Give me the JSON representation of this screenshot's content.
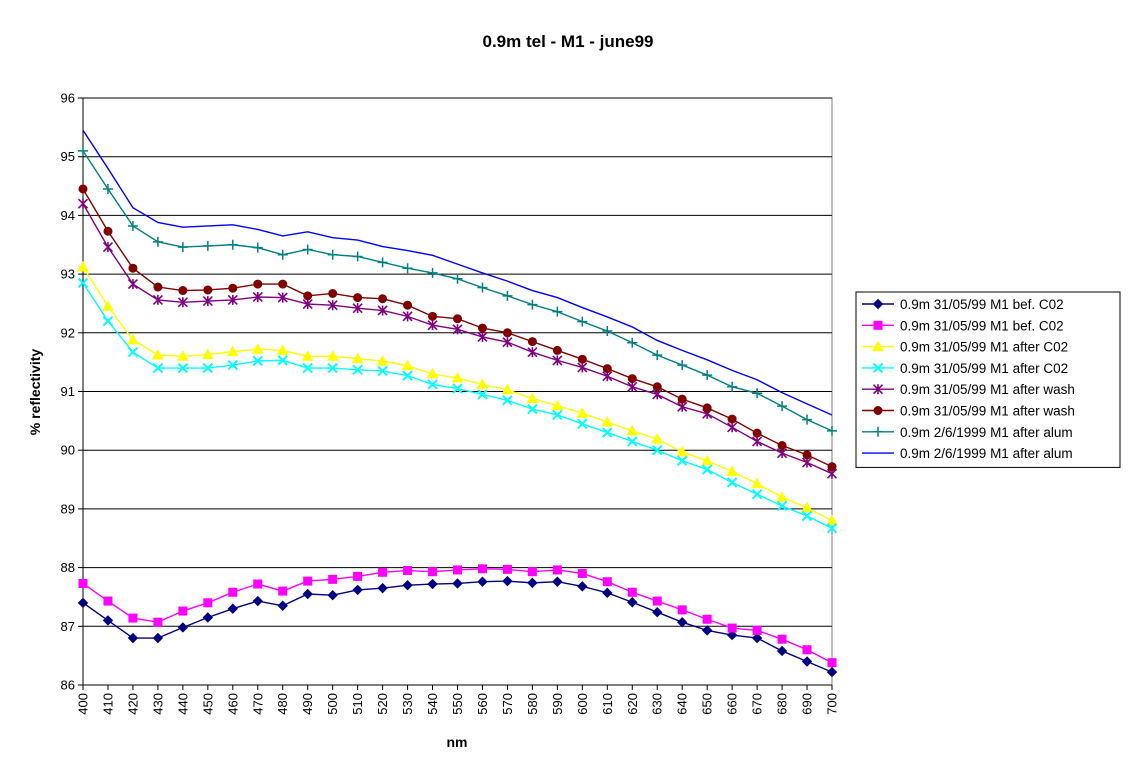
{
  "chart_data": {
    "type": "line",
    "title": "0.9m tel - M1 - june99",
    "xlabel": "nm",
    "ylabel": "% reflectivity",
    "ylim": [
      86,
      96
    ],
    "yticks": [
      "86",
      "87",
      "88",
      "89",
      "90",
      "91",
      "92",
      "93",
      "94",
      "95",
      "96"
    ],
    "x": [
      400,
      410,
      420,
      430,
      440,
      450,
      460,
      470,
      480,
      490,
      500,
      510,
      520,
      530,
      540,
      550,
      560,
      570,
      580,
      590,
      600,
      610,
      620,
      630,
      640,
      650,
      660,
      670,
      680,
      690,
      700
    ],
    "grid": "horizontal",
    "legend_position": "right",
    "series": [
      {
        "name": "0.9m 31/05/99 M1 bef. C02",
        "color": "#000080",
        "marker": "diamond",
        "values": [
          87.4,
          87.1,
          86.8,
          86.8,
          86.98,
          87.15,
          87.3,
          87.43,
          87.35,
          87.55,
          87.53,
          87.62,
          87.65,
          87.7,
          87.72,
          87.73,
          87.76,
          87.77,
          87.74,
          87.76,
          87.68,
          87.57,
          87.41,
          87.24,
          87.07,
          86.93,
          86.85,
          86.8,
          86.58,
          86.4,
          86.22
        ]
      },
      {
        "name": "0.9m 31/05/99 M1 bef. C02",
        "color": "#ff00ff",
        "marker": "square",
        "values": [
          87.73,
          87.43,
          87.14,
          87.07,
          87.26,
          87.4,
          87.58,
          87.72,
          87.6,
          87.77,
          87.8,
          87.85,
          87.92,
          87.95,
          87.93,
          87.96,
          87.98,
          87.97,
          87.93,
          87.96,
          87.9,
          87.76,
          87.58,
          87.43,
          87.28,
          87.12,
          86.97,
          86.93,
          86.78,
          86.6,
          86.38
        ]
      },
      {
        "name": "0.9m 31/05/99 M1 after C02",
        "color": "#ffff00",
        "marker": "triangle",
        "values": [
          93.12,
          92.45,
          91.88,
          91.62,
          91.6,
          91.63,
          91.68,
          91.72,
          91.7,
          91.6,
          91.6,
          91.56,
          91.52,
          91.44,
          91.3,
          91.23,
          91.12,
          91.03,
          90.88,
          90.76,
          90.63,
          90.48,
          90.33,
          90.19,
          89.97,
          89.82,
          89.64,
          89.43,
          89.2,
          89.02,
          88.8
        ]
      },
      {
        "name": "0.9m 31/05/99 M1 after C02",
        "color": "#00ffff",
        "marker": "x",
        "values": [
          92.85,
          92.2,
          91.67,
          91.4,
          91.4,
          91.4,
          91.45,
          91.52,
          91.53,
          91.4,
          91.4,
          91.37,
          91.35,
          91.27,
          91.12,
          91.05,
          90.95,
          90.85,
          90.7,
          90.6,
          90.45,
          90.3,
          90.15,
          90.0,
          89.82,
          89.67,
          89.45,
          89.25,
          89.05,
          88.88,
          88.67
        ]
      },
      {
        "name": "0.9m 31/05/99 M1 after wash",
        "color": "#800080",
        "marker": "star",
        "values": [
          94.2,
          93.46,
          92.83,
          92.56,
          92.52,
          92.54,
          92.56,
          92.61,
          92.6,
          92.49,
          92.47,
          92.42,
          92.38,
          92.28,
          92.13,
          92.06,
          91.93,
          91.84,
          91.67,
          91.53,
          91.41,
          91.26,
          91.08,
          90.95,
          90.74,
          90.62,
          90.39,
          90.15,
          89.95,
          89.79,
          89.6
        ]
      },
      {
        "name": "0.9m 31/05/99 M1 after wash",
        "color": "#800000",
        "marker": "circle",
        "values": [
          94.45,
          93.73,
          93.1,
          92.78,
          92.72,
          92.73,
          92.76,
          92.83,
          92.83,
          92.63,
          92.67,
          92.6,
          92.58,
          92.47,
          92.28,
          92.24,
          92.08,
          92.0,
          91.85,
          91.7,
          91.55,
          91.39,
          91.22,
          91.08,
          90.87,
          90.72,
          90.53,
          90.29,
          90.08,
          89.92,
          89.72
        ]
      },
      {
        "name": "0.9m 2/6/1999 M1 after alum",
        "color": "#008080",
        "marker": "plus",
        "values": [
          95.1,
          94.45,
          93.82,
          93.55,
          93.46,
          93.48,
          93.5,
          93.45,
          93.33,
          93.42,
          93.33,
          93.3,
          93.2,
          93.1,
          93.02,
          92.92,
          92.77,
          92.63,
          92.48,
          92.36,
          92.19,
          92.03,
          91.83,
          91.62,
          91.45,
          91.28,
          91.08,
          90.97,
          90.75,
          90.52,
          90.33
        ]
      },
      {
        "name": "0.9m 2/6/1999 M1 after alum",
        "color": "#0000ff",
        "marker": "none",
        "values": [
          95.45,
          94.8,
          94.13,
          93.88,
          93.8,
          93.82,
          93.84,
          93.76,
          93.65,
          93.72,
          93.62,
          93.58,
          93.47,
          93.4,
          93.32,
          93.17,
          93.02,
          92.88,
          92.72,
          92.6,
          92.43,
          92.27,
          92.1,
          91.87,
          91.7,
          91.54,
          91.36,
          91.2,
          90.98,
          90.79,
          90.6
        ]
      }
    ]
  }
}
